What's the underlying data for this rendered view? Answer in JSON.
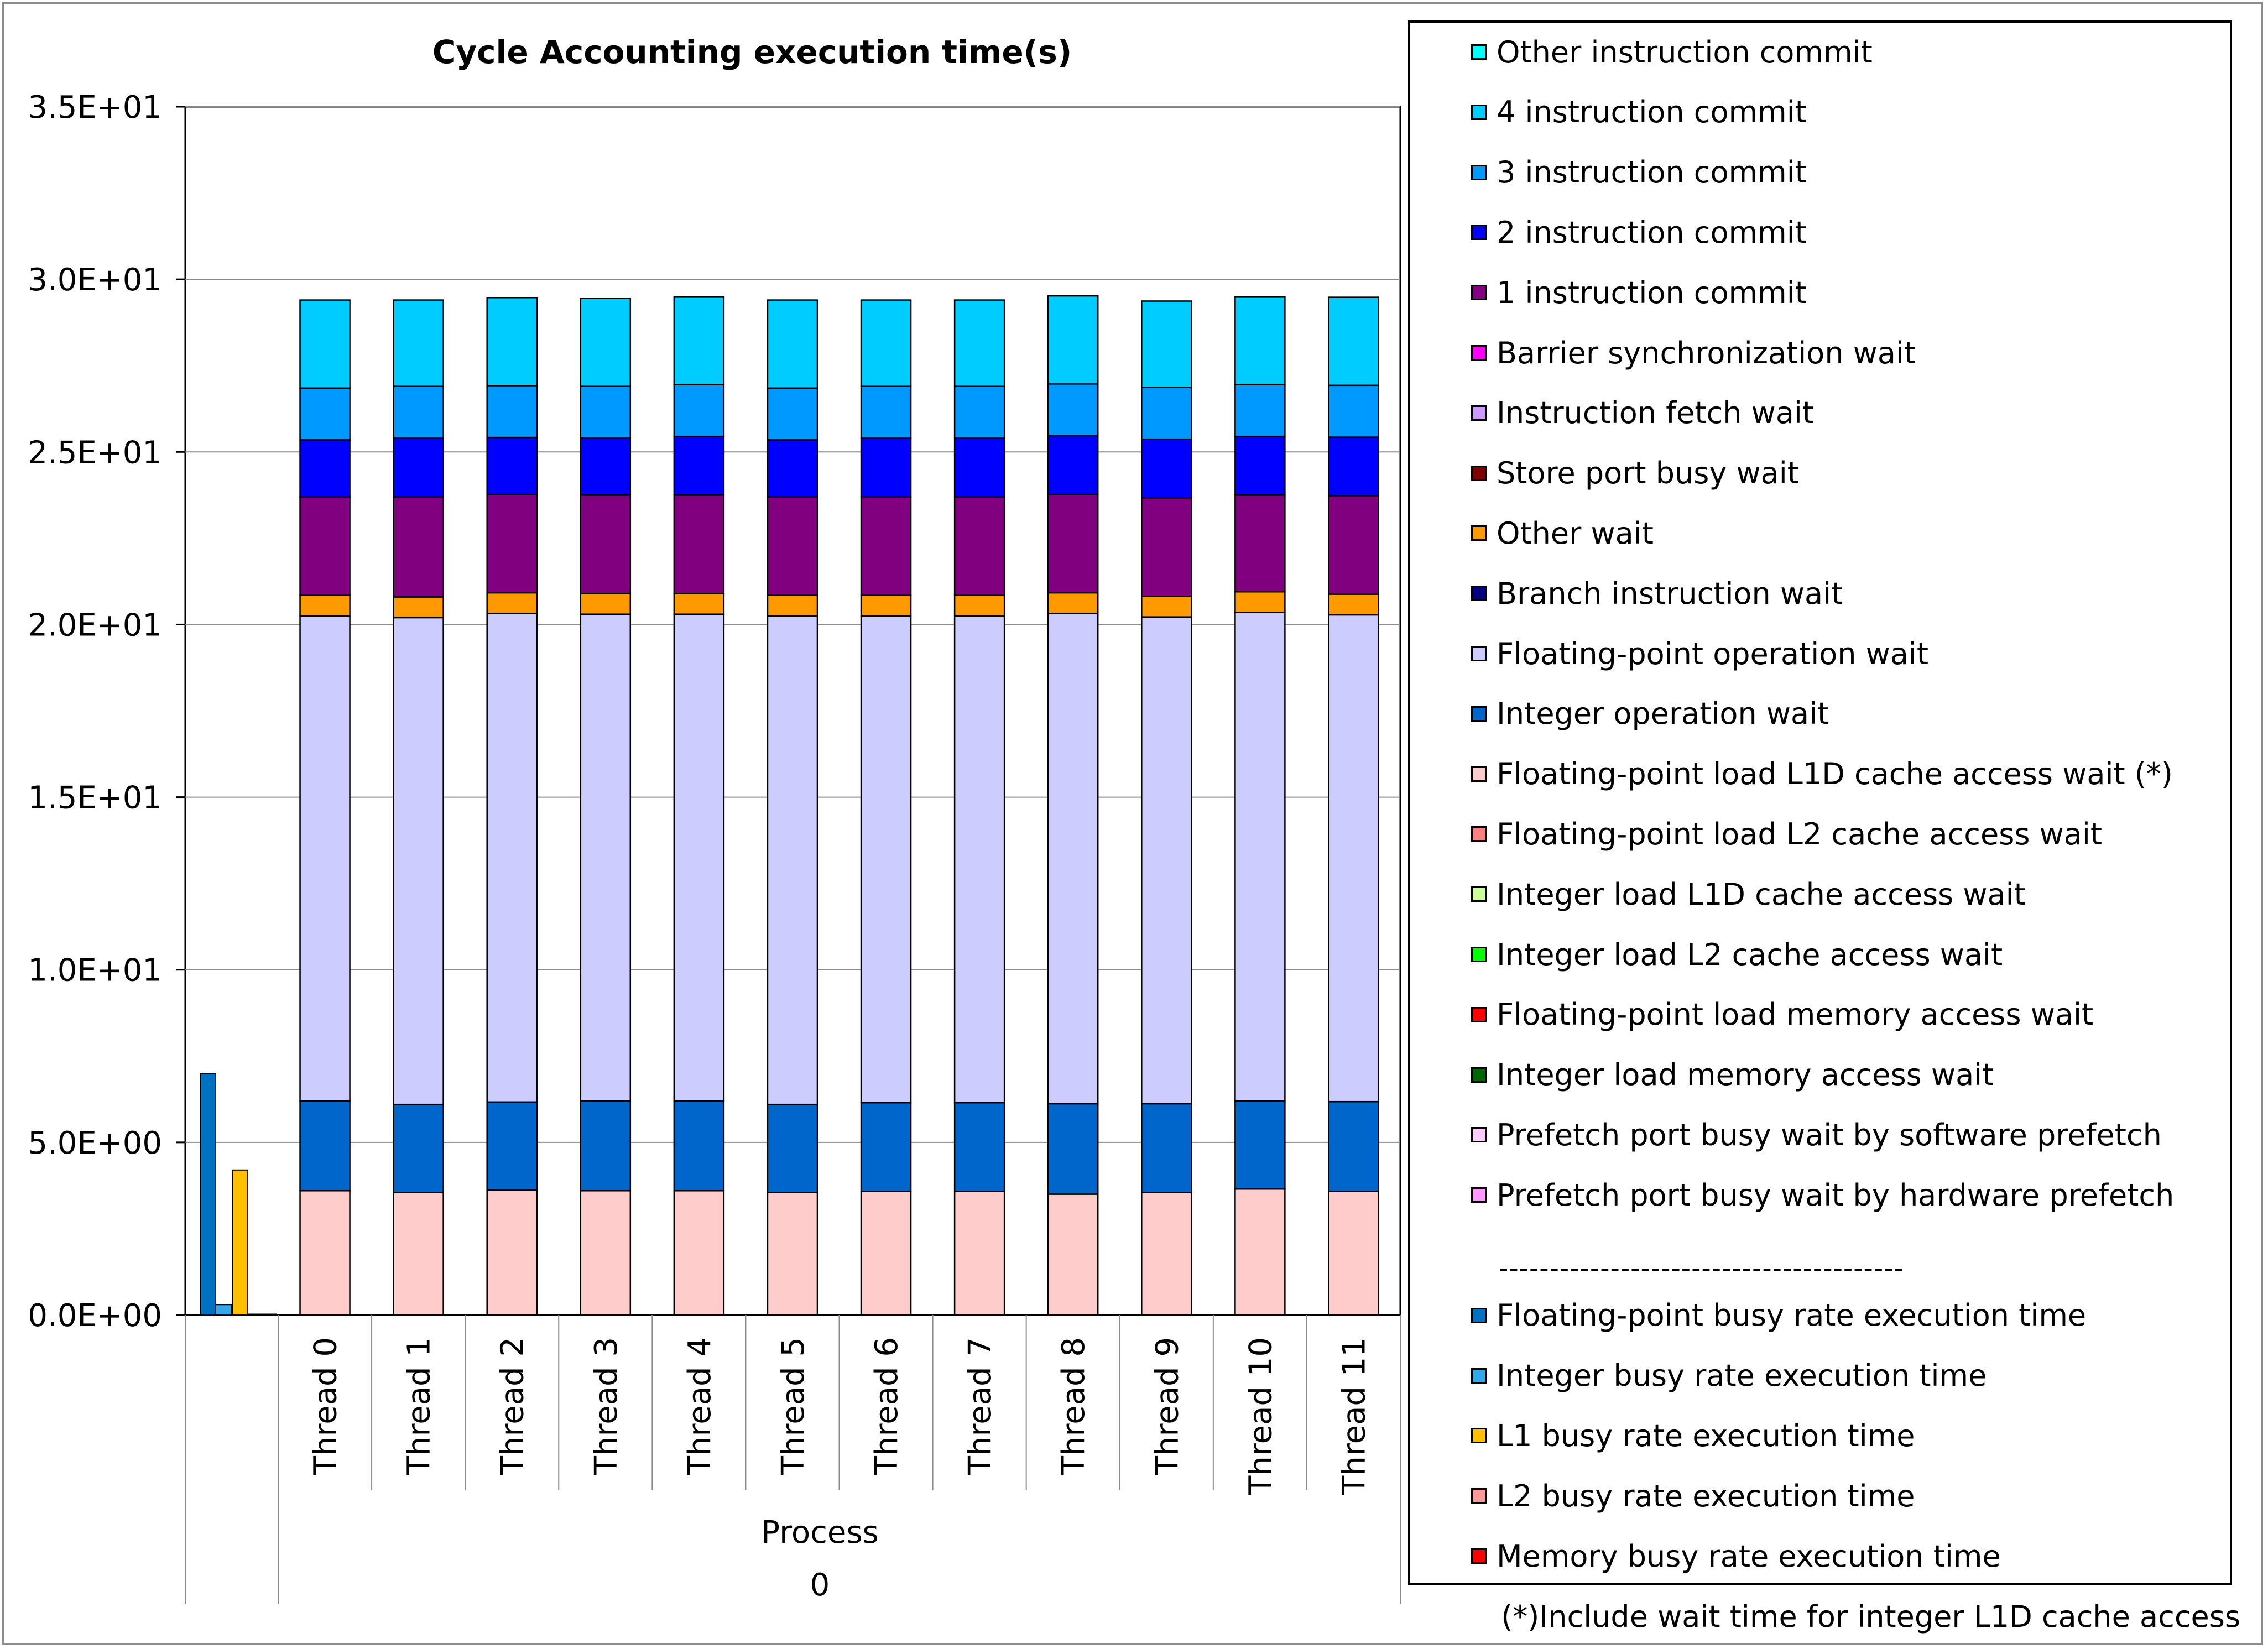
{
  "chart_data": {
    "type": "bar",
    "stacked": true,
    "title": "Cycle Accounting execution time(s)",
    "ylim": [
      0,
      35
    ],
    "yticks": [
      0,
      5,
      10,
      15,
      20,
      25,
      30,
      35
    ],
    "ytick_labels": [
      "0.0E+00",
      "5.0E+00",
      "1.0E+01",
      "1.5E+01",
      "2.0E+01",
      "2.5E+01",
      "3.0E+01",
      "3.5E+01"
    ],
    "grid": true,
    "categories": [
      "Thread 0",
      "Thread 1",
      "Thread 2",
      "Thread 3",
      "Thread 4",
      "Thread 5",
      "Thread 6",
      "Thread 7",
      "Thread 8",
      "Thread 9",
      "Thread 10",
      "Thread 11"
    ],
    "group_label": "Process",
    "group_value": "0",
    "series": [
      {
        "name": "Floating-point load L1D cache access wait (*)",
        "color": "#FFCCCC",
        "values": [
          3.6,
          3.55,
          3.62,
          3.6,
          3.6,
          3.55,
          3.58,
          3.58,
          3.5,
          3.55,
          3.65,
          3.58
        ]
      },
      {
        "name": "Integer operation wait",
        "color": "#0066CC",
        "values": [
          2.6,
          2.55,
          2.55,
          2.6,
          2.6,
          2.55,
          2.57,
          2.57,
          2.62,
          2.57,
          2.55,
          2.6
        ]
      },
      {
        "name": "Floating-point operation wait",
        "color": "#CCCCFF",
        "values": [
          14.05,
          14.1,
          14.15,
          14.1,
          14.1,
          14.15,
          14.1,
          14.1,
          14.2,
          14.1,
          14.15,
          14.1
        ]
      },
      {
        "name": "Other wait",
        "color": "#FF9900",
        "values": [
          0.6,
          0.6,
          0.6,
          0.6,
          0.6,
          0.6,
          0.6,
          0.6,
          0.6,
          0.6,
          0.6,
          0.6
        ]
      },
      {
        "name": "1 instruction commit",
        "color": "#800080",
        "values": [
          2.85,
          2.9,
          2.85,
          2.85,
          2.85,
          2.85,
          2.85,
          2.85,
          2.85,
          2.85,
          2.8,
          2.85
        ]
      },
      {
        "name": "2 instruction commit",
        "color": "#0000FF",
        "values": [
          1.65,
          1.7,
          1.65,
          1.65,
          1.7,
          1.65,
          1.7,
          1.7,
          1.7,
          1.7,
          1.7,
          1.7
        ]
      },
      {
        "name": "3 instruction commit",
        "color": "#0099FF",
        "values": [
          1.5,
          1.5,
          1.5,
          1.5,
          1.5,
          1.5,
          1.5,
          1.5,
          1.5,
          1.5,
          1.5,
          1.5
        ]
      },
      {
        "name": "4 instruction commit",
        "color": "#00CCFF",
        "values": [
          2.55,
          2.5,
          2.55,
          2.55,
          2.55,
          2.55,
          2.5,
          2.5,
          2.55,
          2.5,
          2.55,
          2.55
        ]
      }
    ],
    "process_bars": [
      {
        "name": "Floating-point busy rate execution time",
        "color": "#0070C0",
        "value": 7.0
      },
      {
        "name": "Integer busy rate execution time",
        "color": "#33A8E8",
        "value": 0.3
      },
      {
        "name": "L1 busy rate execution time",
        "color": "#FFC000",
        "value": 4.2
      }
    ],
    "legend": [
      {
        "label": "Other instruction commit",
        "color": "#00FFFF"
      },
      {
        "label": "4 instruction commit",
        "color": "#00CCFF"
      },
      {
        "label": "3 instruction commit",
        "color": "#0099FF"
      },
      {
        "label": "2 instruction commit",
        "color": "#0000FF"
      },
      {
        "label": "1 instruction commit",
        "color": "#800080"
      },
      {
        "label": "Barrier synchronization wait",
        "color": "#FF00FF"
      },
      {
        "label": "Instruction fetch wait",
        "color": "#CC99FF"
      },
      {
        "label": "Store port busy wait",
        "color": "#800000"
      },
      {
        "label": "Other wait",
        "color": "#FF9900"
      },
      {
        "label": "Branch instruction wait",
        "color": "#000080"
      },
      {
        "label": "Floating-point operation wait",
        "color": "#CCCCFF"
      },
      {
        "label": "Integer operation wait",
        "color": "#0066CC"
      },
      {
        "label": "Floating-point load L1D cache access wait (*)",
        "color": "#FFCCCC"
      },
      {
        "label": "Floating-point load L2 cache access wait",
        "color": "#FF8080"
      },
      {
        "label": "Integer load L1D cache access wait",
        "color": "#CCFF99"
      },
      {
        "label": "Integer load L2 cache access wait",
        "color": "#00FF00"
      },
      {
        "label": "Floating-point load memory access wait",
        "color": "#FF0000"
      },
      {
        "label": "Integer load memory access wait",
        "color": "#006600"
      },
      {
        "label": "Prefetch port busy wait by software prefetch",
        "color": "#FFCCFF"
      },
      {
        "label": "Prefetch port busy wait by hardware prefetch",
        "color": "#FF99FF"
      },
      {
        "label": "Floating-point busy rate execution time",
        "color": "#0070C0"
      },
      {
        "label": "Integer busy rate execution time",
        "color": "#33A8E8"
      },
      {
        "label": "L1 busy rate execution time",
        "color": "#FFC000"
      },
      {
        "label": "L2 busy rate execution time",
        "color": "#FF9999"
      },
      {
        "label": "Memory busy rate execution time",
        "color": "#FF0000"
      }
    ],
    "legend_separator": "----------------------------------------",
    "footnote": "(*)Include wait time for integer L1D cache access"
  }
}
